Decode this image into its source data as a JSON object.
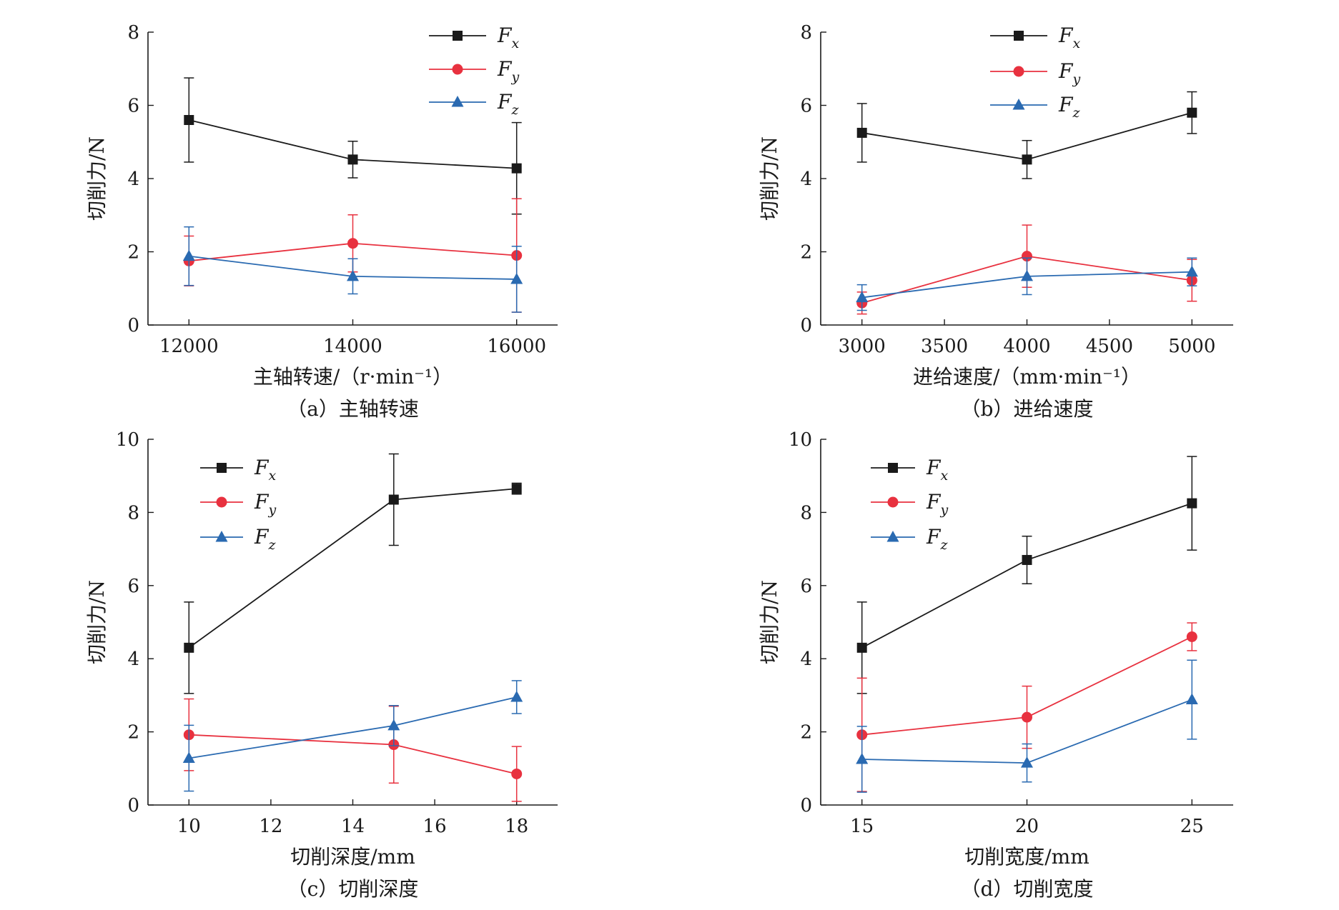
{
  "colors": {
    "Fx": "#1a1a1a",
    "Fy": "#e8313f",
    "Fz": "#2a6ab1"
  },
  "legend": [
    {
      "key": "Fx",
      "base": "F",
      "sub": "x",
      "marker": "square"
    },
    {
      "key": "Fy",
      "base": "F",
      "sub": "y",
      "marker": "circle"
    },
    {
      "key": "Fz",
      "base": "F",
      "sub": "z",
      "marker": "triangle"
    }
  ],
  "chart_data": [
    {
      "type": "line",
      "caption": "（a）主轴转速",
      "xlabel": "主轴转速/（r·min⁻¹）",
      "ylabel": "切削力/N",
      "x": [
        12000,
        14000,
        16000
      ],
      "xlim": [
        11500,
        16500
      ],
      "xticks": [
        12000,
        14000,
        16000
      ],
      "ylim": [
        0,
        8
      ],
      "yticks": [
        0,
        2,
        4,
        6,
        8
      ],
      "legend_position": "top-right",
      "series": [
        {
          "key": "Fx",
          "values": [
            5.6,
            4.52,
            4.28
          ],
          "err": [
            1.15,
            0.5,
            1.25
          ]
        },
        {
          "key": "Fy",
          "values": [
            1.75,
            2.23,
            1.9
          ],
          "err": [
            0.68,
            0.78,
            1.55
          ]
        },
        {
          "key": "Fz",
          "values": [
            1.88,
            1.33,
            1.25
          ],
          "err": [
            0.8,
            0.48,
            0.9
          ]
        }
      ]
    },
    {
      "type": "line",
      "caption": "（b）进给速度",
      "xlabel": "进给速度/（mm·min⁻¹）",
      "ylabel": "切削力/N",
      "x": [
        3000,
        4000,
        5000
      ],
      "xlim": [
        2750,
        5250
      ],
      "xticks": [
        3000,
        3500,
        4000,
        4500,
        5000
      ],
      "ylim": [
        0,
        8
      ],
      "yticks": [
        0,
        2,
        4,
        6,
        8
      ],
      "legend_position": "top-center",
      "series": [
        {
          "key": "Fx",
          "values": [
            5.25,
            4.52,
            5.8
          ],
          "err": [
            0.8,
            0.52,
            0.57
          ]
        },
        {
          "key": "Fy",
          "values": [
            0.6,
            1.88,
            1.22
          ],
          "err": [
            0.3,
            0.85,
            0.57
          ]
        },
        {
          "key": "Fz",
          "values": [
            0.75,
            1.33,
            1.45
          ],
          "err": [
            0.35,
            0.5,
            0.38
          ]
        }
      ]
    },
    {
      "type": "line",
      "caption": "（c）切削深度",
      "xlabel": "切削深度/mm",
      "ylabel": "切削力/N",
      "x": [
        10,
        15,
        18
      ],
      "xlim": [
        9,
        19
      ],
      "xticks": [
        10,
        12,
        14,
        16,
        18
      ],
      "ylim": [
        0,
        10
      ],
      "yticks": [
        0,
        2,
        4,
        6,
        8,
        10
      ],
      "legend_position": "top-left",
      "series": [
        {
          "key": "Fx",
          "values": [
            4.3,
            8.35,
            8.65
          ],
          "err": [
            1.25,
            1.25,
            0.15
          ]
        },
        {
          "key": "Fy",
          "values": [
            1.92,
            1.65,
            0.85
          ],
          "err": [
            0.98,
            1.05,
            0.75
          ]
        },
        {
          "key": "Fz",
          "values": [
            1.28,
            2.17,
            2.95
          ],
          "err": [
            0.9,
            0.55,
            0.45
          ]
        }
      ]
    },
    {
      "type": "line",
      "caption": "（d）切削宽度",
      "xlabel": "切削宽度/mm",
      "ylabel": "切削力/N",
      "x": [
        15,
        20,
        25
      ],
      "xlim": [
        13.75,
        26.25
      ],
      "xticks": [
        15,
        20,
        25
      ],
      "ylim": [
        0,
        10
      ],
      "yticks": [
        0,
        2,
        4,
        6,
        8,
        10
      ],
      "legend_position": "top-left",
      "series": [
        {
          "key": "Fx",
          "values": [
            4.3,
            6.7,
            8.25
          ],
          "err": [
            1.25,
            0.65,
            1.28
          ]
        },
        {
          "key": "Fy",
          "values": [
            1.92,
            2.4,
            4.6
          ],
          "err": [
            1.55,
            0.85,
            0.38
          ]
        },
        {
          "key": "Fz",
          "values": [
            1.25,
            1.15,
            2.88
          ],
          "err": [
            0.9,
            0.52,
            1.08
          ]
        }
      ]
    }
  ]
}
